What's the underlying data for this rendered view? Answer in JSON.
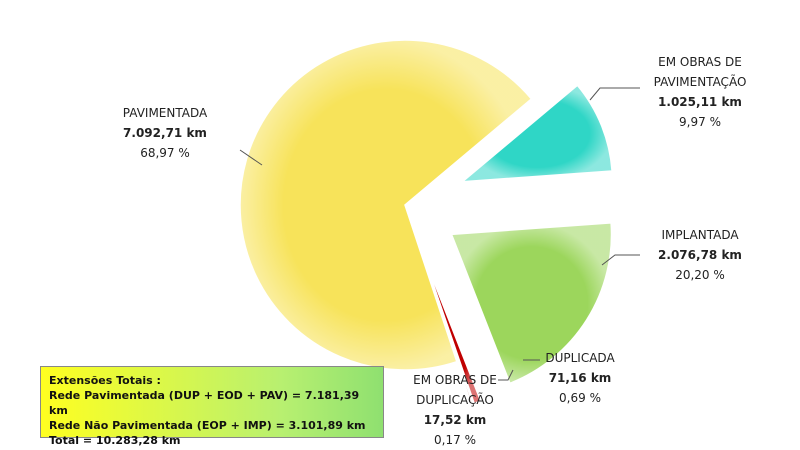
{
  "chart_data": {
    "type": "pie",
    "categories": [
      "EM OBRAS DE PAVIMENTAÇÃO",
      "IMPLANTADA",
      "DUPLICADA",
      "EM OBRAS DE DUPLICAÇÃO",
      "PAVIMENTADA"
    ],
    "values": [
      1025.11,
      2076.78,
      71.16,
      17.52,
      7092.71
    ],
    "value_labels": [
      "1.025,11 km",
      "2.076,78 km",
      "71,16 km",
      "17,52 km",
      "7.092,71 km"
    ],
    "percentages": [
      9.97,
      20.2,
      0.69,
      0.17,
      68.97
    ],
    "percentage_labels": [
      "9,97 %",
      "20,20 %",
      "0,69 %",
      "0,17 %",
      "68,97 %"
    ],
    "colors": [
      "#2fd6c6",
      "#9cd65c",
      "#c00000",
      "#8a0a0a",
      "#f7e35a"
    ]
  },
  "summary": {
    "title": "Extensões Totais :",
    "lines": [
      "Rede Pavimentada  (DUP + EOD + PAV)  = 7.181,39 km",
      "Rede Não Pavimentada (EOP + IMP) = 3.101,89 km",
      "Total = 10.283,28 km"
    ]
  }
}
